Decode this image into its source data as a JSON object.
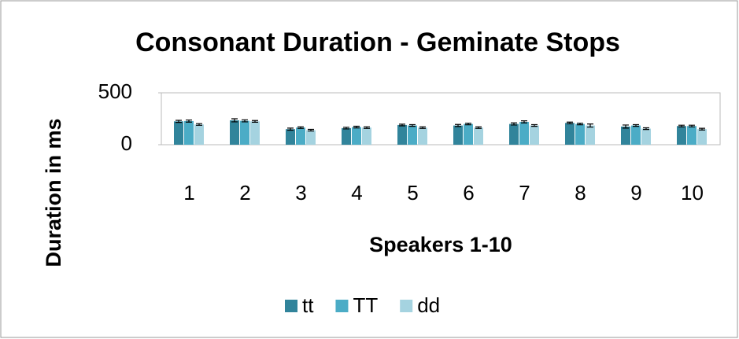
{
  "chart_data": {
    "type": "bar",
    "title": "Consonant Duration - Geminate Stops",
    "x_label": "Speakers 1-10",
    "y_label": "Duration in ms",
    "categories": [
      "1",
      "2",
      "3",
      "4",
      "5",
      "6",
      "7",
      "8",
      "9",
      "10"
    ],
    "series": [
      {
        "name": "tt",
        "color": "#31849b",
        "values": [
          225,
          235,
          150,
          160,
          190,
          185,
          200,
          210,
          175,
          180
        ],
        "errors": [
          10,
          15,
          10,
          8,
          8,
          10,
          10,
          8,
          15,
          8
        ]
      },
      {
        "name": "TT",
        "color": "#4bacc6",
        "values": [
          228,
          230,
          165,
          170,
          185,
          200,
          220,
          200,
          185,
          180
        ],
        "errors": [
          10,
          10,
          8,
          8,
          8,
          8,
          10,
          8,
          8,
          8
        ]
      },
      {
        "name": "dd",
        "color": "#a5d3e0",
        "values": [
          195,
          225,
          140,
          165,
          165,
          165,
          185,
          185,
          155,
          150
        ],
        "errors": [
          8,
          8,
          8,
          8,
          8,
          8,
          8,
          15,
          8,
          8
        ]
      }
    ],
    "ylim": [
      0,
      500
    ],
    "yticks": [
      0,
      500
    ],
    "legend": "bottom"
  }
}
